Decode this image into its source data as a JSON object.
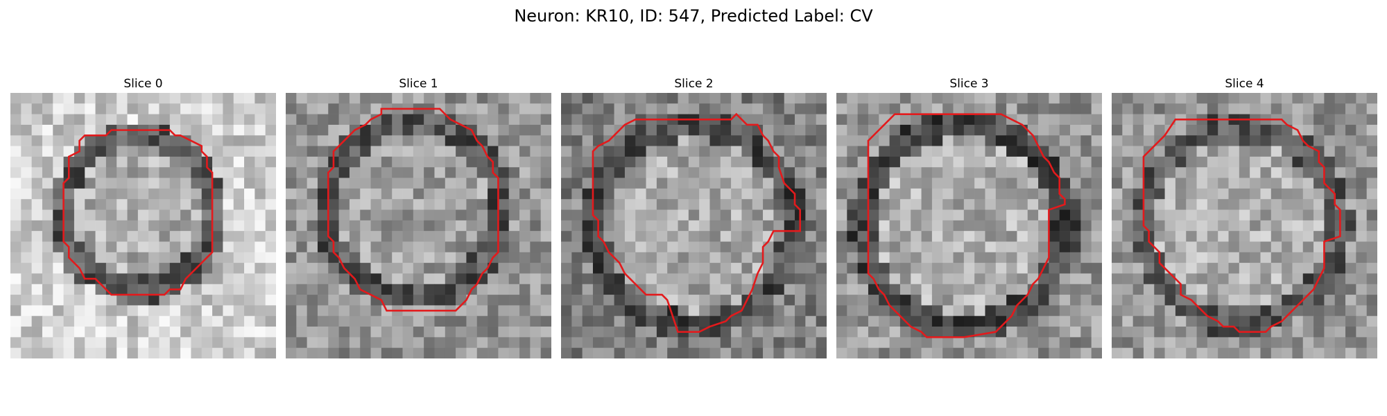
{
  "figure": {
    "title": "Neuron: KR10, ID: 547, Predicted Label: CV"
  },
  "colors": {
    "contour": "#e31a1c",
    "colormap": "grayscale"
  },
  "image_grid": {
    "rows": 25,
    "cols": 25
  },
  "panels": [
    {
      "title": "Slice 0",
      "contour": [
        [
          7,
          4
        ],
        [
          6.5,
          4.5
        ],
        [
          6.5,
          5.5
        ],
        [
          5.5,
          6
        ],
        [
          5.5,
          8
        ],
        [
          5,
          8.5
        ],
        [
          5,
          14
        ],
        [
          5.5,
          14.5
        ],
        [
          5.5,
          15.5
        ],
        [
          6,
          16
        ],
        [
          6.5,
          16.5
        ],
        [
          7,
          17.5
        ],
        [
          8,
          17.5
        ],
        [
          9.5,
          19
        ],
        [
          12,
          19
        ],
        [
          14.5,
          19
        ],
        [
          15,
          18.5
        ],
        [
          16,
          18.5
        ],
        [
          16.5,
          17.5
        ],
        [
          17.5,
          16.5
        ],
        [
          18.5,
          15.5
        ],
        [
          19,
          15
        ],
        [
          19,
          7.5
        ],
        [
          18.5,
          7
        ],
        [
          18.5,
          6
        ],
        [
          18,
          5.5
        ],
        [
          18,
          5
        ],
        [
          17,
          4.5
        ],
        [
          16,
          4
        ],
        [
          15.5,
          4
        ],
        [
          15,
          3.5
        ],
        [
          10,
          3.5
        ],
        [
          9.5,
          3.5
        ],
        [
          9,
          4
        ]
      ]
    },
    {
      "title": "Slice 1",
      "contour": [
        [
          9,
          2
        ],
        [
          8,
          2.5
        ],
        [
          7.5,
          3
        ],
        [
          6.5,
          3.5
        ],
        [
          6,
          4
        ],
        [
          5.5,
          4.5
        ],
        [
          4.5,
          5.5
        ],
        [
          4.5,
          7
        ],
        [
          4,
          7.5
        ],
        [
          4,
          13.5
        ],
        [
          4.5,
          14
        ],
        [
          4.5,
          15
        ],
        [
          5,
          15.5
        ],
        [
          5.5,
          16.5
        ],
        [
          6,
          17
        ],
        [
          6.5,
          17.5
        ],
        [
          7,
          18.5
        ],
        [
          8,
          19
        ],
        [
          9,
          19.5
        ],
        [
          9.5,
          20.5
        ],
        [
          12,
          20.5
        ],
        [
          16,
          20.5
        ],
        [
          16.5,
          20
        ],
        [
          17,
          19.5
        ],
        [
          17.5,
          18.5
        ],
        [
          18,
          18
        ],
        [
          18.5,
          17
        ],
        [
          19,
          16.5
        ],
        [
          19.5,
          15.5
        ],
        [
          20,
          15
        ],
        [
          20,
          8
        ],
        [
          19.5,
          7.5
        ],
        [
          19.5,
          6.5
        ],
        [
          19,
          6
        ],
        [
          18.5,
          5
        ],
        [
          18,
          4.5
        ],
        [
          17.5,
          3.5
        ],
        [
          16.5,
          3
        ],
        [
          15.5,
          2.5
        ],
        [
          15,
          2
        ],
        [
          14.5,
          1.5
        ],
        [
          9,
          1.5
        ]
      ]
    },
    {
      "title": "Slice 2",
      "contour": [
        [
          6,
          3
        ],
        [
          5.5,
          3.5
        ],
        [
          5,
          4
        ],
        [
          4.5,
          4.5
        ],
        [
          3.5,
          5
        ],
        [
          3,
          5.5
        ],
        [
          3,
          7
        ],
        [
          3,
          11.5
        ],
        [
          3.5,
          12
        ],
        [
          3.5,
          13.5
        ],
        [
          4,
          14
        ],
        [
          4.5,
          15
        ],
        [
          5,
          15.5
        ],
        [
          5.5,
          16
        ],
        [
          6,
          17
        ],
        [
          6.5,
          17.5
        ],
        [
          7,
          18
        ],
        [
          7.5,
          18.5
        ],
        [
          8,
          19
        ],
        [
          9.5,
          19
        ],
        [
          10,
          19.5
        ],
        [
          11,
          22.5
        ],
        [
          13,
          22.5
        ],
        [
          14,
          22
        ],
        [
          15.5,
          21.5
        ],
        [
          16,
          21
        ],
        [
          17,
          20.5
        ],
        [
          17.5,
          19.5
        ],
        [
          18,
          18.5
        ],
        [
          18.5,
          17
        ],
        [
          19,
          16
        ],
        [
          19,
          14.5
        ],
        [
          19.5,
          14
        ],
        [
          20,
          13
        ],
        [
          22.5,
          13
        ],
        [
          22.5,
          11
        ],
        [
          22,
          10.5
        ],
        [
          22,
          9.5
        ],
        [
          21.5,
          9
        ],
        [
          21,
          8.5
        ],
        [
          20.5,
          7
        ],
        [
          20.5,
          6
        ],
        [
          20,
          5.5
        ],
        [
          19.5,
          4.5
        ],
        [
          19,
          4
        ],
        [
          18.5,
          3
        ],
        [
          17.5,
          3
        ],
        [
          16.5,
          2
        ],
        [
          16,
          2.5
        ],
        [
          7,
          2.5
        ]
      ]
    },
    {
      "title": "Slice 3",
      "contour": [
        [
          5,
          2.5
        ],
        [
          4,
          3.5
        ],
        [
          3,
          4.5
        ],
        [
          3,
          5
        ],
        [
          3,
          17
        ],
        [
          3.5,
          17.5
        ],
        [
          4,
          18.5
        ],
        [
          4.5,
          19
        ],
        [
          5,
          20
        ],
        [
          5.5,
          20.5
        ],
        [
          6,
          21
        ],
        [
          6.5,
          21.5
        ],
        [
          7,
          22
        ],
        [
          8,
          22.5
        ],
        [
          8.5,
          23
        ],
        [
          12,
          23
        ],
        [
          15,
          22.5
        ],
        [
          15.5,
          22
        ],
        [
          16,
          21.5
        ],
        [
          16.5,
          21
        ],
        [
          17,
          20
        ],
        [
          17.5,
          19.5
        ],
        [
          18,
          19
        ],
        [
          18.5,
          18
        ],
        [
          19,
          17.5
        ],
        [
          19.5,
          16.5
        ],
        [
          20,
          15.5
        ],
        [
          20,
          11
        ],
        [
          21.5,
          10.5
        ],
        [
          21.5,
          10
        ],
        [
          21,
          9.5
        ],
        [
          21,
          8
        ],
        [
          20.5,
          7.5
        ],
        [
          20,
          6.5
        ],
        [
          19.5,
          6
        ],
        [
          19,
          5
        ],
        [
          18.5,
          4
        ],
        [
          18,
          3.5
        ],
        [
          17.5,
          3
        ],
        [
          16.5,
          2.5
        ],
        [
          15.5,
          2
        ],
        [
          5.5,
          2
        ]
      ]
    },
    {
      "title": "Slice 4",
      "contour": [
        [
          5,
          4
        ],
        [
          4.5,
          4.5
        ],
        [
          4,
          5
        ],
        [
          3.5,
          5.5
        ],
        [
          3,
          6
        ],
        [
          3,
          7
        ],
        [
          3,
          12.5
        ],
        [
          3.5,
          13
        ],
        [
          3.5,
          14
        ],
        [
          4,
          14.5
        ],
        [
          4.5,
          15
        ],
        [
          4.5,
          16
        ],
        [
          5,
          16.5
        ],
        [
          5.5,
          17
        ],
        [
          6,
          17.5
        ],
        [
          6.5,
          18
        ],
        [
          6.5,
          19
        ],
        [
          7.5,
          19.5
        ],
        [
          8,
          20
        ],
        [
          8.5,
          20.5
        ],
        [
          9,
          21
        ],
        [
          10,
          21.5
        ],
        [
          10.5,
          22
        ],
        [
          11.5,
          22
        ],
        [
          12,
          22.5
        ],
        [
          14.5,
          22.5
        ],
        [
          15,
          22
        ],
        [
          16,
          21.5
        ],
        [
          16.5,
          21
        ],
        [
          17,
          20.5
        ],
        [
          17.5,
          20
        ],
        [
          18,
          19.5
        ],
        [
          18.5,
          19
        ],
        [
          19,
          18.5
        ],
        [
          19.5,
          17.5
        ],
        [
          20,
          16.5
        ],
        [
          20,
          14
        ],
        [
          21.5,
          13.5
        ],
        [
          21.5,
          11
        ],
        [
          21,
          10.5
        ],
        [
          21,
          9.5
        ],
        [
          20.5,
          9
        ],
        [
          20,
          8.5
        ],
        [
          20,
          7
        ],
        [
          19.5,
          6.5
        ],
        [
          19.5,
          5.5
        ],
        [
          18.5,
          5
        ],
        [
          18,
          4.5
        ],
        [
          17.5,
          3.5
        ],
        [
          16.5,
          3
        ],
        [
          16,
          2.5
        ],
        [
          6,
          2.5
        ]
      ]
    }
  ]
}
